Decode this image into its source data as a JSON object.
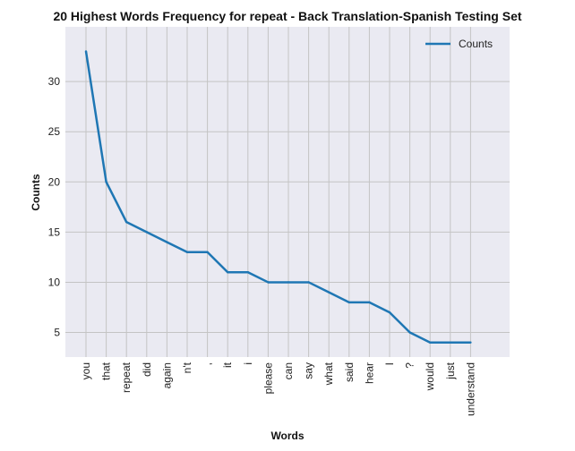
{
  "chart_data": {
    "type": "line",
    "title": "20 Highest Words Frequency for repeat - Back Translation-Spanish Testing Set",
    "xlabel": "Words",
    "ylabel": "Counts",
    "categories": [
      "you",
      "that",
      "repeat",
      "did",
      "again",
      "n't",
      ",",
      "it",
      "i",
      "please",
      "can",
      "say",
      "what",
      "said",
      "hear",
      "I",
      "?",
      "would",
      "just",
      "understand"
    ],
    "series": [
      {
        "name": "Counts",
        "values": [
          33,
          20,
          16,
          15,
          14,
          13,
          13,
          11,
          11,
          10,
          10,
          10,
          9,
          8,
          8,
          7,
          5,
          4,
          4,
          4
        ]
      }
    ],
    "ylim": [
      2.55,
      35.45
    ],
    "yticks": [
      5,
      10,
      15,
      20,
      25,
      30
    ],
    "grid": true,
    "legend": "top-right",
    "colors": {
      "line": "#1f77b4",
      "plot_bg": "#eaeaf2",
      "grid": "#c4c4c4"
    }
  }
}
